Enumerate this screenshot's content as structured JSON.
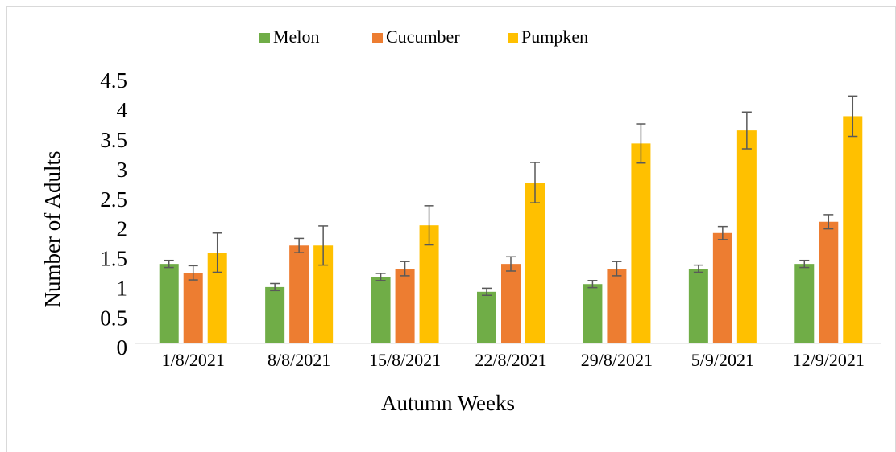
{
  "chart_data": {
    "type": "bar",
    "x_label": "Autumn Weeks",
    "y_label": "Number of Adults",
    "categories": [
      "1/8/2021",
      "8/8/2021",
      "15/8/2021",
      "22/8/2021",
      "29/8/2021",
      "5/9/2021",
      "12/9/2021"
    ],
    "series": [
      {
        "name": "Melon",
        "color": "#70ad47",
        "values": [
          1.34,
          0.95,
          1.12,
          0.87,
          1.0,
          1.26,
          1.34
        ],
        "errors": [
          0.06,
          0.06,
          0.06,
          0.06,
          0.06,
          0.06,
          0.06
        ]
      },
      {
        "name": "Cucumber",
        "color": "#ed7d31",
        "values": [
          1.19,
          1.65,
          1.26,
          1.34,
          1.26,
          1.86,
          2.05
        ],
        "errors": [
          0.12,
          0.12,
          0.12,
          0.12,
          0.12,
          0.11,
          0.12
        ]
      },
      {
        "name": "Pumpken",
        "color": "#ffc000",
        "values": [
          1.53,
          1.65,
          1.99,
          2.71,
          3.37,
          3.59,
          3.83
        ],
        "errors": [
          0.33,
          0.33,
          0.33,
          0.34,
          0.33,
          0.31,
          0.34
        ]
      }
    ],
    "ylim": [
      0,
      4.5
    ],
    "yticks": [
      0,
      0.5,
      1,
      1.5,
      2,
      2.5,
      3,
      3.5,
      4,
      4.5
    ],
    "grid": false,
    "legend": "top"
  }
}
